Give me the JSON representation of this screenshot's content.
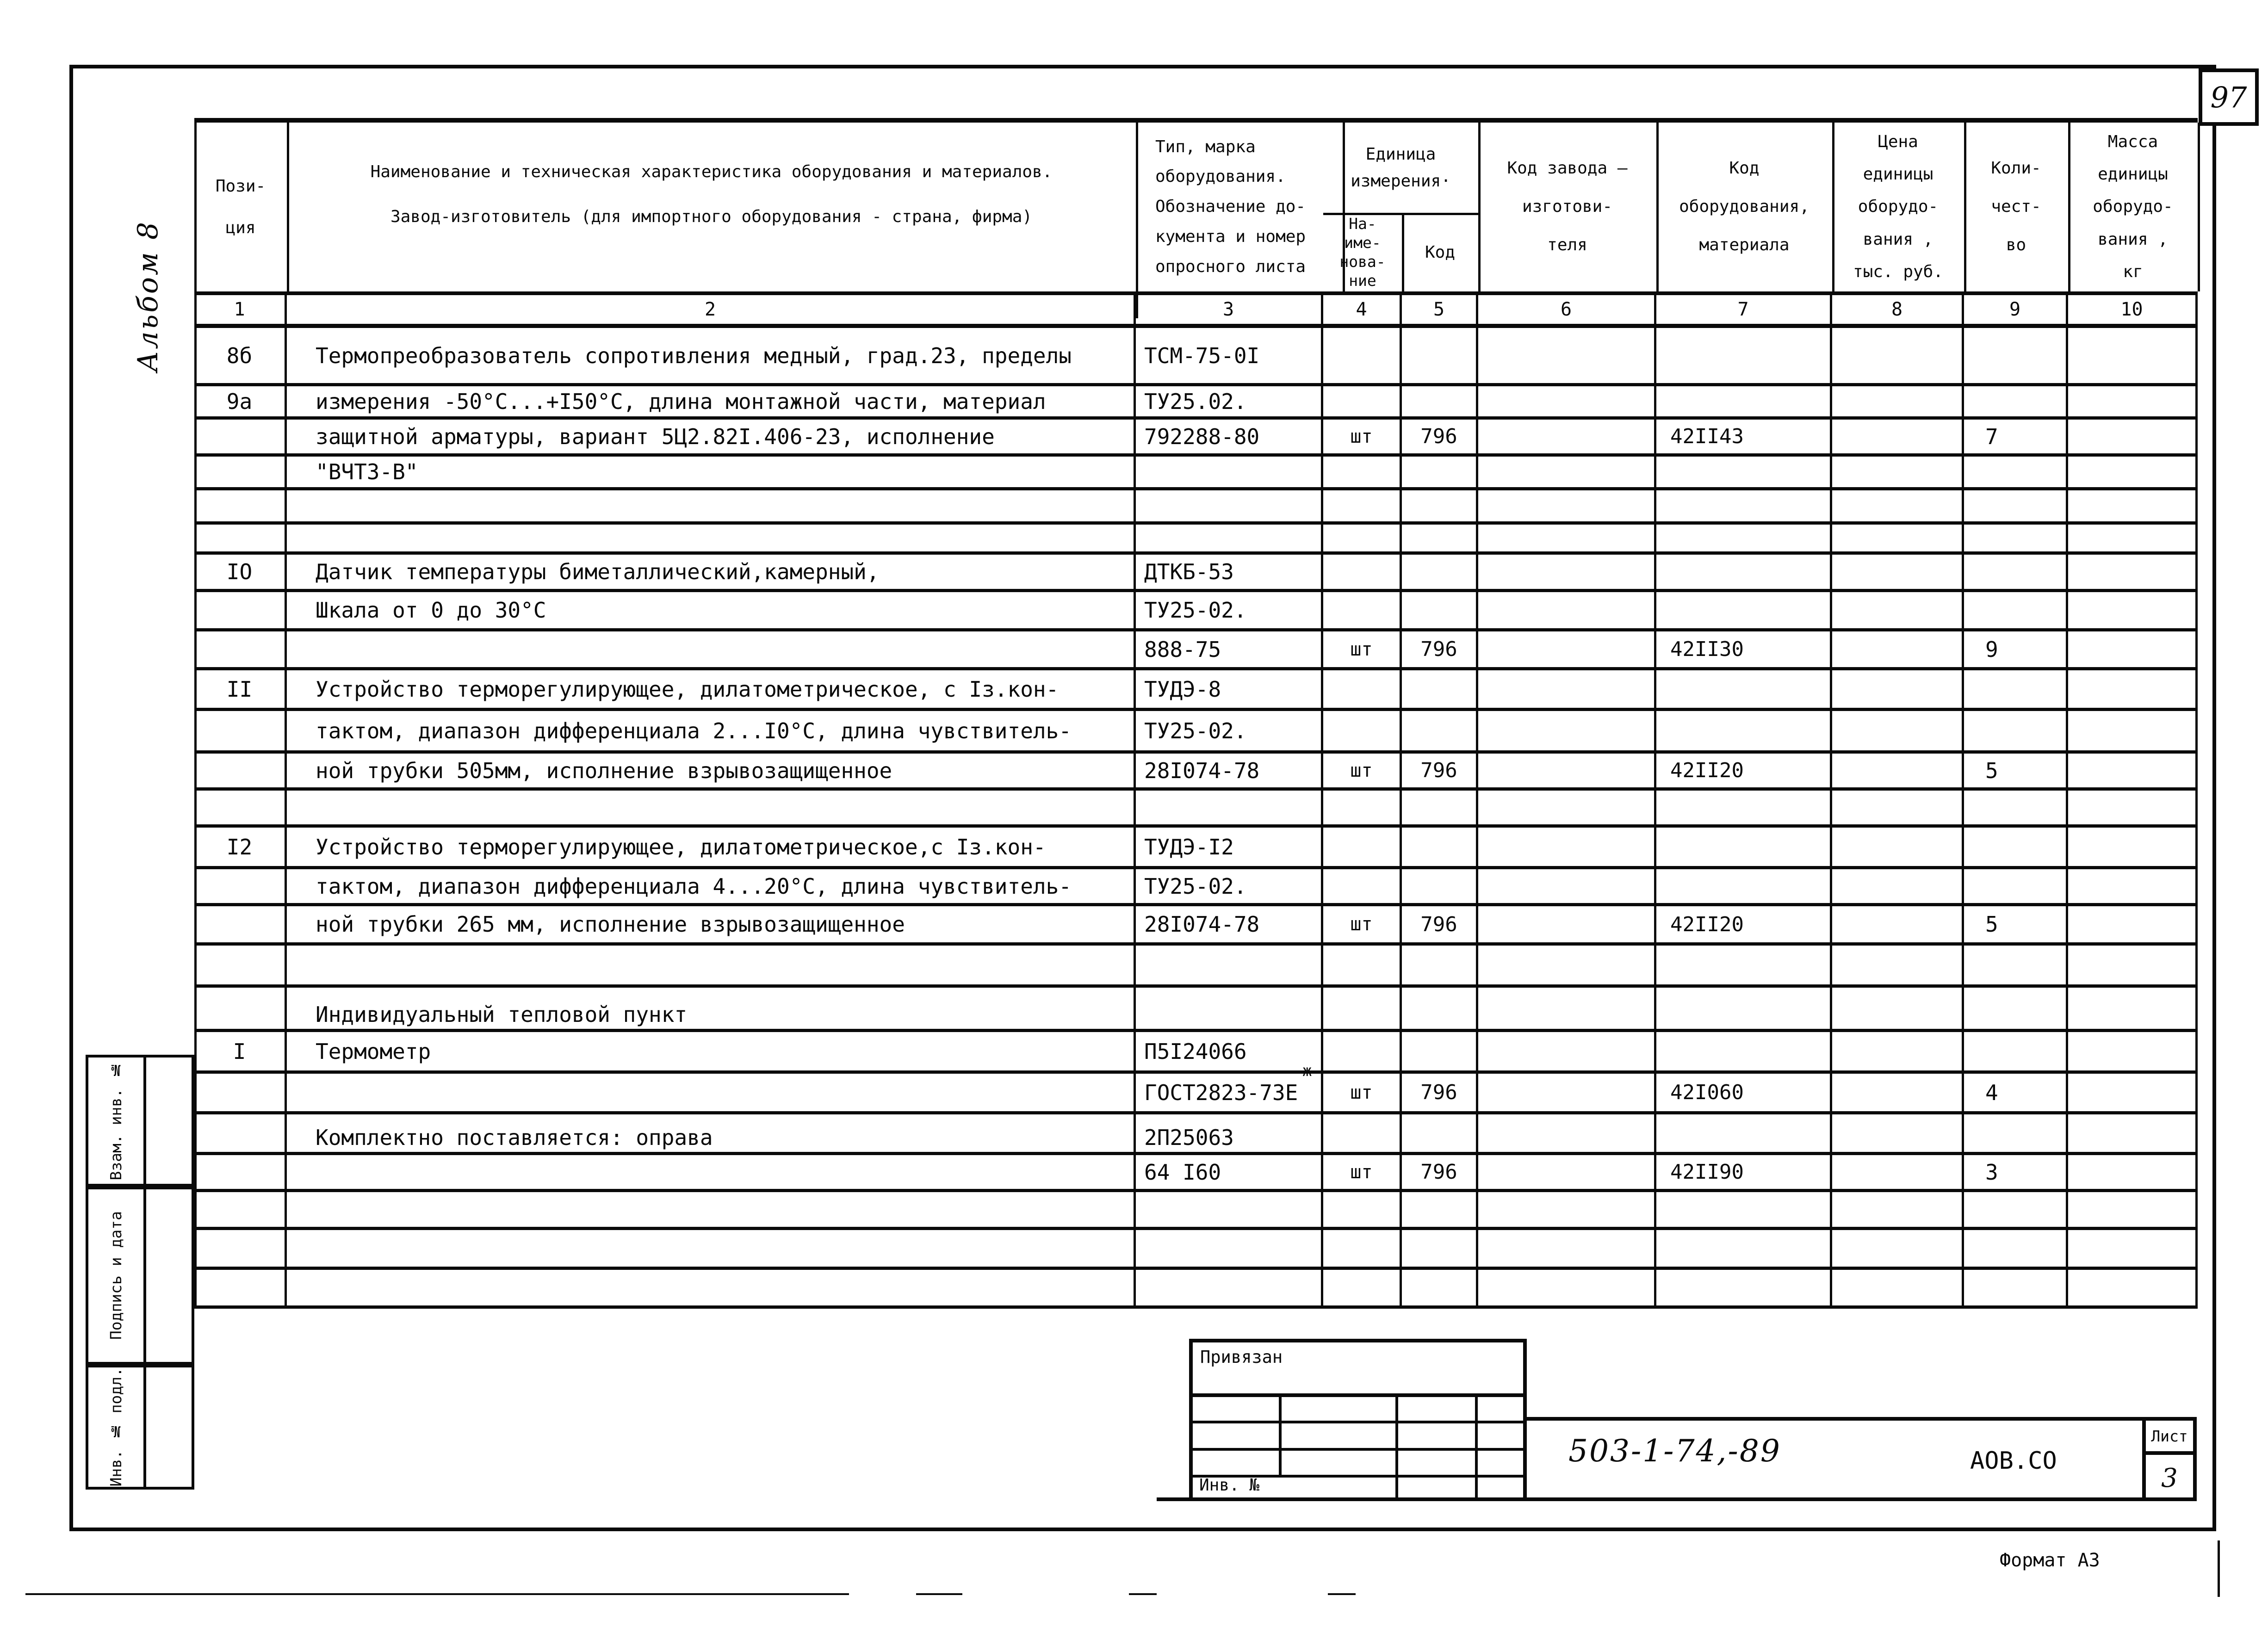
{
  "page_number": "97",
  "album_label": "Альбом 8",
  "sidebar": {
    "labels": [
      "Взам. инв. №",
      "Подпись и дата",
      "Инв. № подл."
    ]
  },
  "table": {
    "header": {
      "c1": [
        "Пози-",
        "ция"
      ],
      "c2_line1": "Наименование и техническая характеристика  оборудования и материалов.",
      "c2_line2": "Завод-изготовитель  (для импортного оборудования -  страна, фирма)",
      "c3": [
        "Тип,   марка",
        "оборудования.",
        "Обозначение  до-",
        "кумента  и  номер",
        "опросного  листа"
      ],
      "unit_merged": [
        "Единица",
        "измерения·"
      ],
      "c4": [
        "На-",
        "име-",
        "нова-",
        "ние"
      ],
      "c5": [
        "Код"
      ],
      "c6": [
        "Код  завода –",
        "изготови-",
        "теля"
      ],
      "c7": [
        "Код",
        "оборудования,",
        "материала"
      ],
      "c8": [
        "Цена",
        "единицы",
        "оборудо-",
        "вания ,",
        "тыс. руб."
      ],
      "c9": [
        "Коли-",
        "чест-",
        "во"
      ],
      "c10": [
        "Масса",
        "единицы",
        "оборудо-",
        "вания ,",
        "кг"
      ]
    },
    "column_numbers": [
      "1",
      "2",
      "3",
      "4",
      "5",
      "6",
      "7",
      "8",
      "9",
      "10"
    ],
    "footnote_mark": "ж",
    "rows": [
      {
        "pos": "8б",
        "desc": "Термопреобразователь сопротивления медный, град.23, пределы",
        "type": "ТСМ-75-0I"
      },
      {
        "pos": "9а",
        "desc": "измерения -50°С...+I50°С, длина монтажной части, материал",
        "type": "ТУ25.02."
      },
      {
        "desc": "защитной арматуры, вариант 5Ц2.82I.406-23, исполнение",
        "type": "792288-80",
        "unit": "шт",
        "unit_code": "796",
        "mat_code": "42II43",
        "qty": "7"
      },
      {
        "desc": "\"ВЧТЗ-В\""
      },
      {},
      {},
      {
        "pos": "IO",
        "desc": "Датчик температуры биметаллический,камерный,",
        "type": "ДТКБ-53"
      },
      {
        "desc": "Шкала от 0 до 30°С",
        "type": "ТУ25-02."
      },
      {
        "type": "888-75",
        "unit": "шт",
        "unit_code": "796",
        "mat_code": "42II30",
        "qty": "9"
      },
      {
        "pos": "II",
        "desc": "Устройство терморегулирующее, дилатометрическое, с Iз.кон-",
        "type": "ТУДЭ-8"
      },
      {
        "desc": "тактом, диапазон дифференциала 2...I0°С, длина чувствитель-",
        "type": "ТУ25-02."
      },
      {
        "desc": "ной трубки 505мм, исполнение взрывозащищенное",
        "type": "28I074-78",
        "unit": "шт",
        "unit_code": "796",
        "mat_code": "42II20",
        "qty": "5"
      },
      {},
      {
        "pos": "I2",
        "desc": "Устройство терморегулирующее, дилатометрическое,с Iз.кон-",
        "type": "ТУДЭ-I2"
      },
      {
        "desc": "тактом, диапазон дифференциала 4...20°С, длина чувствитель-",
        "type": "ТУ25-02."
      },
      {
        "desc": "ной трубки 265 мм, исполнение взрывозащищенное",
        "type": "28I074-78",
        "unit": "шт",
        "unit_code": "796",
        "mat_code": "42II20",
        "qty": "5"
      },
      {},
      {
        "desc": "Индивидуальный тепловой пункт",
        "valign": "bottom"
      },
      {
        "pos": "I",
        "desc": "Термометр",
        "type": "П5I24066"
      },
      {
        "type": "ГОСТ2823-73Е",
        "unit": "шт",
        "unit_code": "796",
        "mat_code": "42I060",
        "qty": "4"
      },
      {
        "desc": "Комплектно поставляется: оправа",
        "type": "2П25063",
        "valign": "bottom"
      },
      {
        "type": "64 I60",
        "unit": "шт",
        "unit_code": "796",
        "mat_code": "42II90",
        "qty": "3"
      },
      {},
      {},
      {}
    ]
  },
  "stamp": {
    "linked_label": "Привязан",
    "inv_label": "Инв. №",
    "doc_number": "503-1-74,-89",
    "doc_code": "АОВ.СО",
    "sheet_label": "Лист",
    "sheet_number": "3",
    "format_label": "Формат А3"
  }
}
